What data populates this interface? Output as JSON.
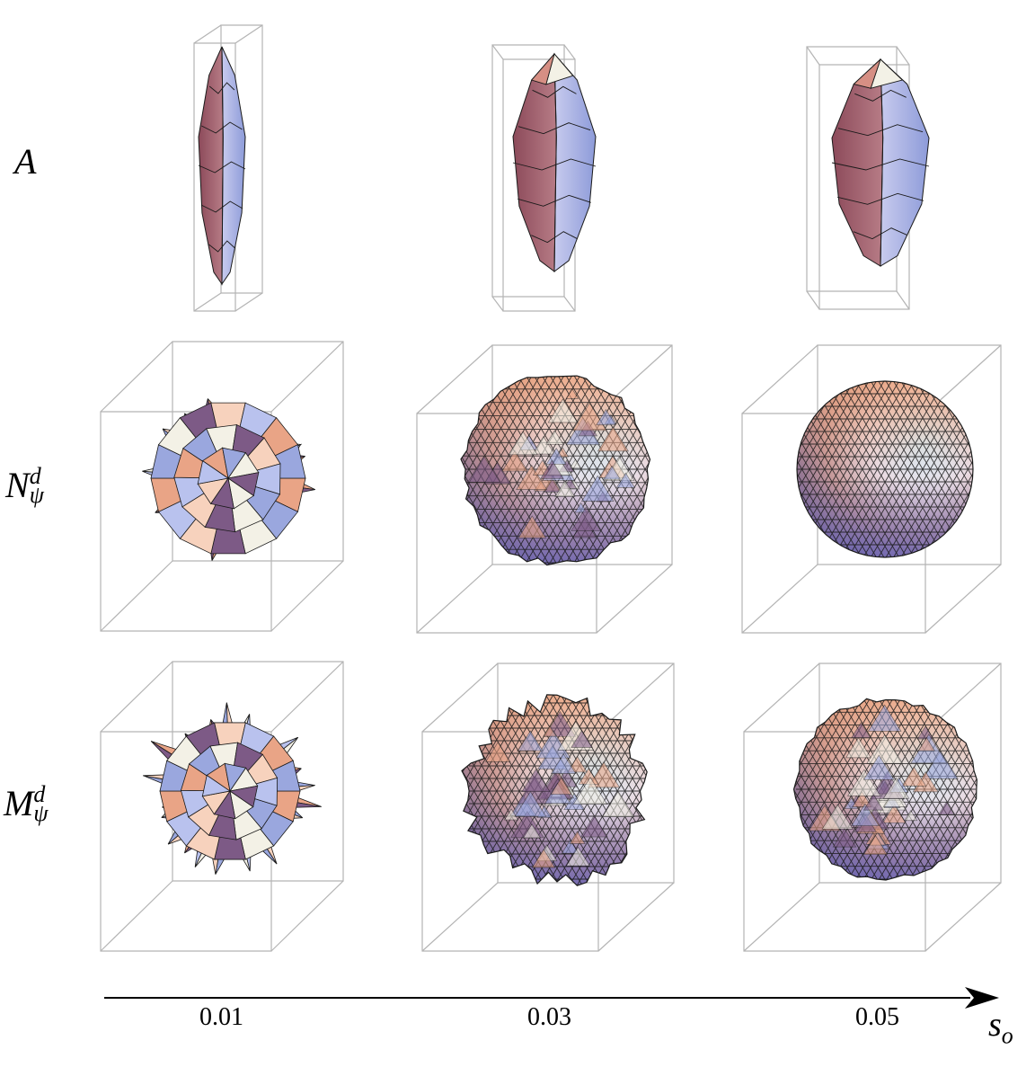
{
  "rows": [
    {
      "symbol": "A",
      "sup": "",
      "sub": ""
    },
    {
      "symbol": "N",
      "sup": "d",
      "sub": "ψ"
    },
    {
      "symbol": "M",
      "sup": "d",
      "sub": "ψ"
    }
  ],
  "axis": {
    "ticks": [
      "0.01",
      "0.03",
      "0.05"
    ],
    "variable": "s",
    "variable_sub": "o"
  },
  "colors": {
    "box": "#b4b4b4",
    "mesh": "#1a1a1a",
    "warm": "#e9a486",
    "cool": "#9aa7de",
    "light": "#f3f1e6",
    "dark": "#7d5a86"
  }
}
